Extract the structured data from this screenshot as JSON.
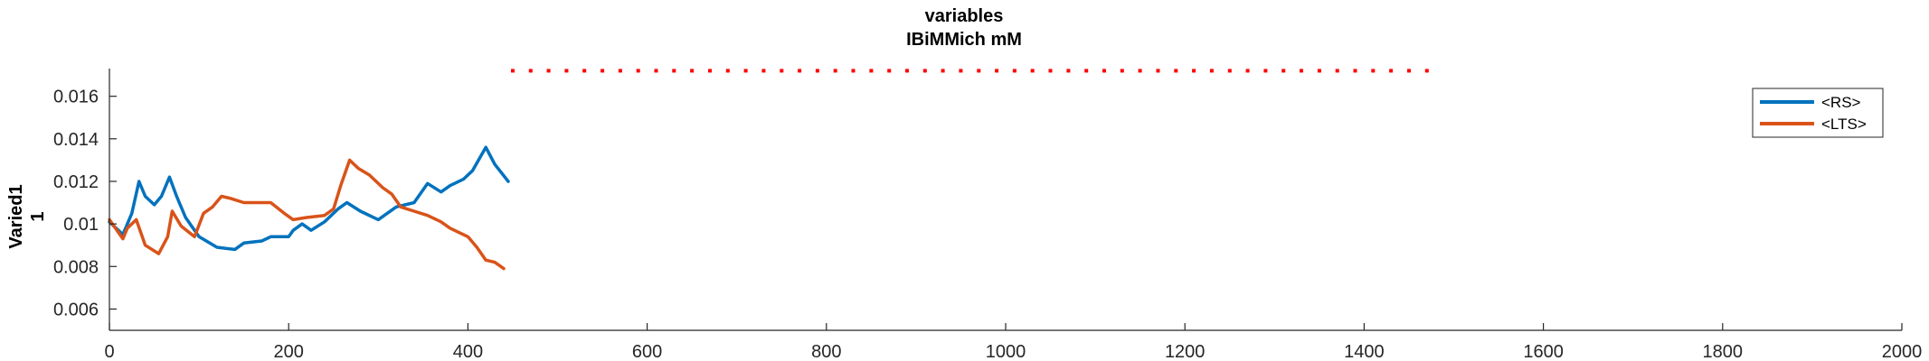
{
  "chart_data": {
    "type": "line",
    "title": "variables",
    "subtitle": "IBiMMich mM",
    "ylabel_lines": [
      "Varied1",
      "1"
    ],
    "xlabel": "",
    "xlim": [
      0,
      2000
    ],
    "ylim": [
      0.005,
      0.0173
    ],
    "xticks": [
      0,
      200,
      400,
      600,
      800,
      1000,
      1200,
      1400,
      1600,
      1800,
      2000
    ],
    "xtick_labels": [
      "0",
      "200",
      "400",
      "600",
      "800",
      "1000",
      "1200",
      "1400",
      "1600",
      "1800",
      "2000"
    ],
    "yticks": [
      0.006,
      0.008,
      0.01,
      0.012,
      0.014,
      0.016
    ],
    "ytick_labels": [
      "0.006",
      "0.008",
      "0.01",
      "0.012",
      "0.014",
      "0.016"
    ],
    "grid": false,
    "legend_position": "top-right",
    "stimulus_marker": {
      "x_start": 450,
      "x_end": 1480,
      "y": 0.0172,
      "color": "#ff0000"
    },
    "series": [
      {
        "name": "<RS>",
        "color": "#0072bd",
        "points": [
          [
            0,
            0.0101
          ],
          [
            15,
            0.0095
          ],
          [
            25,
            0.0105
          ],
          [
            33,
            0.012
          ],
          [
            40,
            0.0113
          ],
          [
            50,
            0.0109
          ],
          [
            58,
            0.0113
          ],
          [
            67,
            0.0122
          ],
          [
            75,
            0.0113
          ],
          [
            85,
            0.0103
          ],
          [
            100,
            0.0094
          ],
          [
            120,
            0.0089
          ],
          [
            140,
            0.0088
          ],
          [
            150,
            0.0091
          ],
          [
            170,
            0.0092
          ],
          [
            180,
            0.0094
          ],
          [
            200,
            0.0094
          ],
          [
            205,
            0.0097
          ],
          [
            215,
            0.01
          ],
          [
            225,
            0.0097
          ],
          [
            240,
            0.0101
          ],
          [
            255,
            0.0107
          ],
          [
            265,
            0.011
          ],
          [
            280,
            0.0106
          ],
          [
            300,
            0.0102
          ],
          [
            320,
            0.0108
          ],
          [
            340,
            0.011
          ],
          [
            355,
            0.0119
          ],
          [
            370,
            0.0115
          ],
          [
            380,
            0.0118
          ],
          [
            395,
            0.0121
          ],
          [
            405,
            0.0125
          ],
          [
            420,
            0.0136
          ],
          [
            430,
            0.0128
          ],
          [
            445,
            0.012
          ]
        ]
      },
      {
        "name": "<LTS>",
        "color": "#d95319",
        "points": [
          [
            0,
            0.0102
          ],
          [
            15,
            0.0093
          ],
          [
            20,
            0.0098
          ],
          [
            30,
            0.0102
          ],
          [
            40,
            0.009
          ],
          [
            55,
            0.0086
          ],
          [
            65,
            0.0094
          ],
          [
            70,
            0.0106
          ],
          [
            80,
            0.0099
          ],
          [
            95,
            0.0094
          ],
          [
            105,
            0.0105
          ],
          [
            115,
            0.0108
          ],
          [
            125,
            0.0113
          ],
          [
            135,
            0.0112
          ],
          [
            150,
            0.011
          ],
          [
            180,
            0.011
          ],
          [
            195,
            0.0105
          ],
          [
            205,
            0.0102
          ],
          [
            220,
            0.0103
          ],
          [
            240,
            0.0104
          ],
          [
            250,
            0.0107
          ],
          [
            258,
            0.0118
          ],
          [
            268,
            0.013
          ],
          [
            278,
            0.0126
          ],
          [
            290,
            0.0123
          ],
          [
            305,
            0.0117
          ],
          [
            315,
            0.0114
          ],
          [
            325,
            0.0108
          ],
          [
            340,
            0.0106
          ],
          [
            355,
            0.0104
          ],
          [
            370,
            0.0101
          ],
          [
            380,
            0.0098
          ],
          [
            400,
            0.0094
          ],
          [
            410,
            0.0089
          ],
          [
            420,
            0.0083
          ],
          [
            430,
            0.0082
          ],
          [
            440,
            0.0079
          ]
        ]
      }
    ]
  },
  "legend_labels": [
    "<RS>",
    "<LTS>"
  ]
}
